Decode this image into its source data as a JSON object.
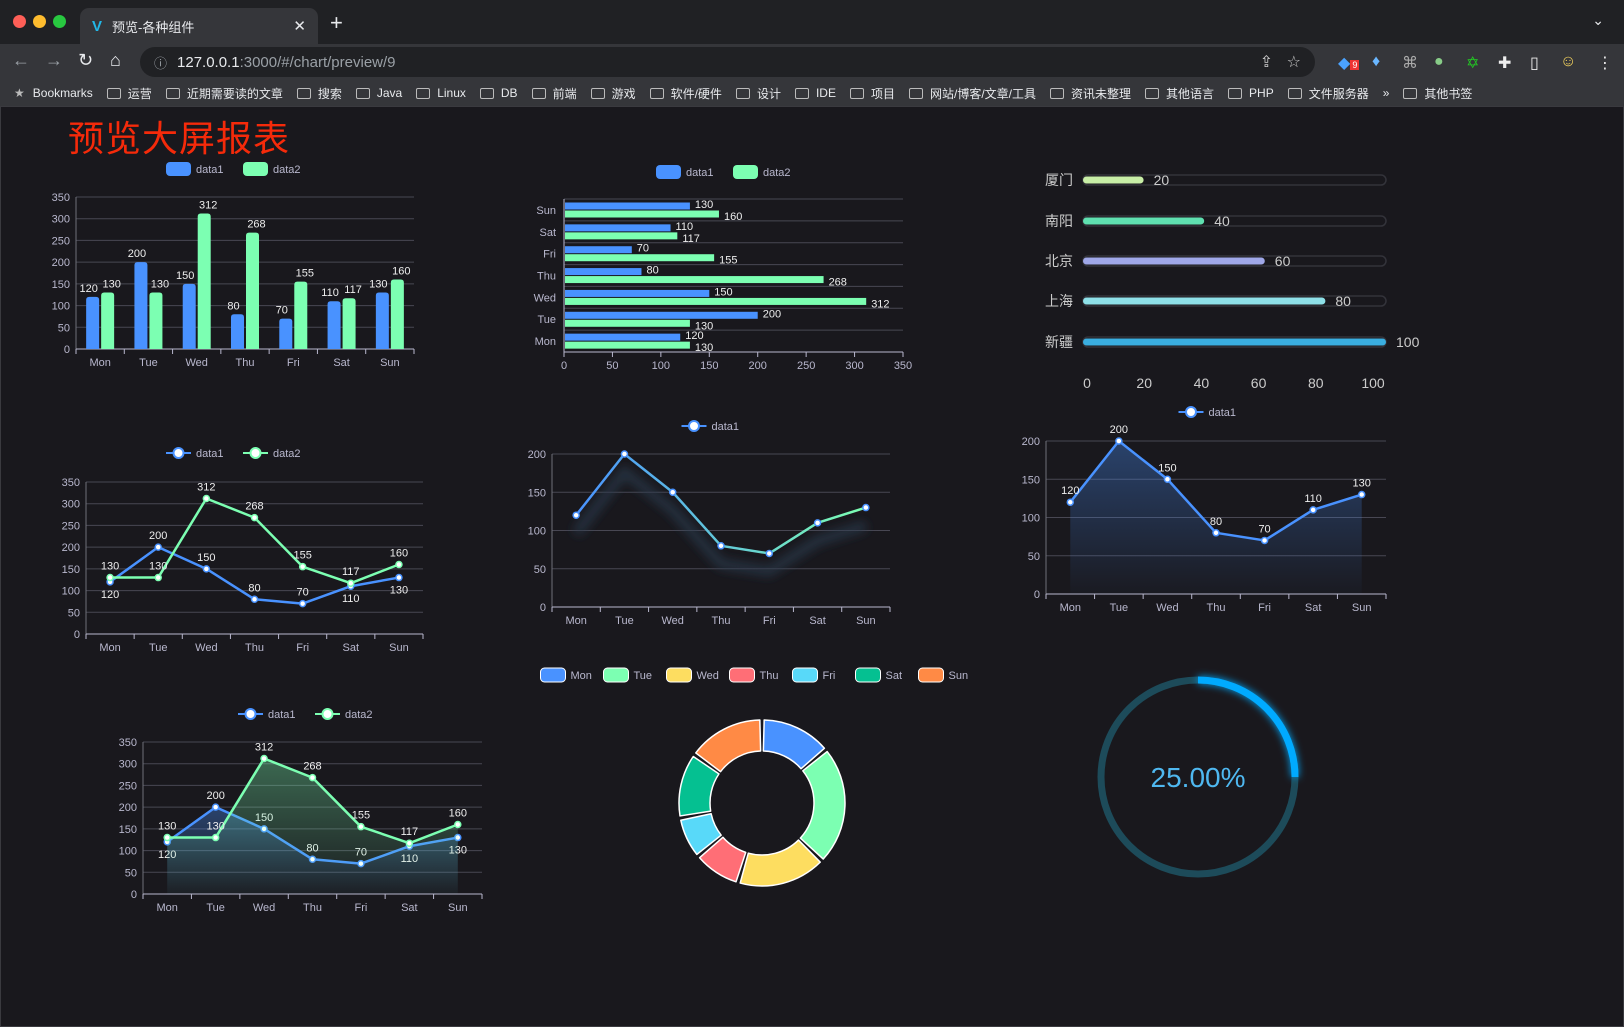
{
  "browser": {
    "tab_title": "预览-各种组件",
    "url_host": "127.0.0.1",
    "url_path": ":3000/#/chart/preview/9",
    "extension_badge": "9",
    "bookmarks": [
      "Bookmarks",
      "运营",
      "近期需要读的文章",
      "搜索",
      "Java",
      "Linux",
      "DB",
      "前端",
      "游戏",
      "软件/硬件",
      "设计",
      "IDE",
      "项目",
      "网站/博客/文章/工具",
      "资讯未整理",
      "其他语言",
      "PHP",
      "文件服务器"
    ],
    "bookmarks_overflow": "»",
    "other_bookmarks": "其他书签"
  },
  "page": {
    "title": "预览大屏报表"
  },
  "colors": {
    "data1": "#4992ff",
    "data2": "#7cffb2",
    "pie": [
      "#4992ff",
      "#7cffb2",
      "#fddd60",
      "#ff6e76",
      "#58d9f9",
      "#05c091",
      "#ff8a45"
    ]
  },
  "chart_data": [
    {
      "id": "bar",
      "type": "bar",
      "categories": [
        "Mon",
        "Tue",
        "Wed",
        "Thu",
        "Fri",
        "Sat",
        "Sun"
      ],
      "series": [
        {
          "name": "data1",
          "values": [
            120,
            200,
            150,
            80,
            70,
            110,
            130
          ]
        },
        {
          "name": "data2",
          "values": [
            130,
            130,
            312,
            268,
            155,
            117,
            160
          ]
        }
      ],
      "ylim": [
        0,
        350
      ],
      "ystep": 50,
      "labels": true,
      "legend": "top"
    },
    {
      "id": "hbar",
      "type": "bar",
      "orientation": "horizontal",
      "categories": [
        "Mon",
        "Tue",
        "Wed",
        "Thu",
        "Fri",
        "Sat",
        "Sun"
      ],
      "series": [
        {
          "name": "data1",
          "values": [
            120,
            200,
            150,
            80,
            70,
            110,
            130
          ]
        },
        {
          "name": "data2",
          "values": [
            130,
            130,
            312,
            268,
            155,
            117,
            160
          ]
        }
      ],
      "xlim": [
        0,
        350
      ],
      "xstep": 50,
      "labels": true,
      "legend": "top"
    },
    {
      "id": "progress",
      "type": "bar",
      "orientation": "horizontal",
      "categories": [
        "厦门",
        "南阳",
        "北京",
        "上海",
        "新疆"
      ],
      "values": [
        20,
        40,
        60,
        80,
        100
      ],
      "colors": [
        "#c8eea6",
        "#5fe0b0",
        "#9fa7e8",
        "#8ee0e8",
        "#3aaee0"
      ],
      "xlim": [
        0,
        100
      ],
      "xticks": [
        0,
        20,
        40,
        60,
        80,
        100
      ]
    },
    {
      "id": "line1",
      "type": "line",
      "categories": [
        "Mon",
        "Tue",
        "Wed",
        "Thu",
        "Fri",
        "Sat",
        "Sun"
      ],
      "series": [
        {
          "name": "data1",
          "values": [
            120,
            200,
            150,
            80,
            70,
            110,
            130
          ]
        },
        {
          "name": "data2",
          "values": [
            130,
            130,
            312,
            268,
            155,
            117,
            160
          ]
        }
      ],
      "ylim": [
        0,
        350
      ],
      "ystep": 50,
      "labels": true,
      "legend": "top"
    },
    {
      "id": "line2",
      "type": "line",
      "categories": [
        "Mon",
        "Tue",
        "Wed",
        "Thu",
        "Fri",
        "Sat",
        "Sun"
      ],
      "series": [
        {
          "name": "data1",
          "values": [
            120,
            200,
            150,
            80,
            70,
            110,
            130
          ]
        }
      ],
      "ylim": [
        0,
        200
      ],
      "ystep": 50,
      "labels": false,
      "gradient_line": true,
      "legend": "top"
    },
    {
      "id": "area1",
      "type": "area",
      "categories": [
        "Mon",
        "Tue",
        "Wed",
        "Thu",
        "Fri",
        "Sat",
        "Sun"
      ],
      "series": [
        {
          "name": "data1",
          "values": [
            120,
            200,
            150,
            80,
            70,
            110,
            130
          ]
        }
      ],
      "ylim": [
        0,
        200
      ],
      "ystep": 50,
      "labels": true,
      "legend": "top"
    },
    {
      "id": "pie",
      "type": "pie",
      "donut": true,
      "categories": [
        "Mon",
        "Tue",
        "Wed",
        "Thu",
        "Fri",
        "Sat",
        "Sun"
      ],
      "values": [
        120,
        200,
        150,
        80,
        70,
        110,
        130
      ],
      "legend": "top"
    },
    {
      "id": "area2",
      "type": "area",
      "categories": [
        "Mon",
        "Tue",
        "Wed",
        "Thu",
        "Fri",
        "Sat",
        "Sun"
      ],
      "series": [
        {
          "name": "data1",
          "values": [
            120,
            200,
            150,
            80,
            70,
            110,
            130
          ]
        },
        {
          "name": "data2",
          "values": [
            130,
            130,
            312,
            268,
            155,
            117,
            160
          ]
        }
      ],
      "ylim": [
        0,
        350
      ],
      "ystep": 50,
      "labels": true,
      "legend": "top"
    },
    {
      "id": "gauge",
      "type": "pie",
      "subtype": "ring-progress",
      "value": 0.25,
      "label": "25.00%",
      "color": "#00aaff"
    }
  ]
}
